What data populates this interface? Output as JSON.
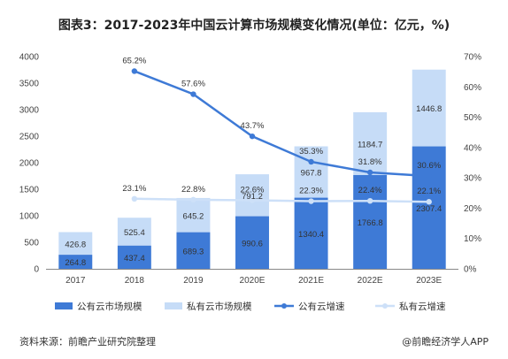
{
  "title": "图表3：2017-2023年中国云计算市场规模变化情况(单位：亿元，%)",
  "footer": {
    "source": "资料来源：前瞻产业研究院整理",
    "brand": "@前瞻经济学人APP"
  },
  "colors": {
    "public_bar": "#3e7ad6",
    "private_bar": "#c6dcf7",
    "public_line": "#3e7ad6",
    "private_line": "#cde0f8"
  },
  "chart_data": {
    "type": "bar",
    "categories": [
      "2017",
      "2018",
      "2019",
      "2020E",
      "2021E",
      "2022E",
      "2023E"
    ],
    "series": [
      {
        "name": "公有云市场规模",
        "type": "bar",
        "axis": "left",
        "values": [
          264.8,
          437.4,
          689.3,
          990.6,
          1340.4,
          1766.8,
          2307.4
        ]
      },
      {
        "name": "私有云市场规模",
        "type": "bar",
        "axis": "left",
        "values": [
          426.8,
          525.4,
          645.2,
          791.2,
          967.8,
          1184.7,
          1446.8
        ]
      },
      {
        "name": "公有云增速",
        "type": "line",
        "axis": "right",
        "values": [
          null,
          65.2,
          57.6,
          43.7,
          35.3,
          31.8,
          30.6
        ]
      },
      {
        "name": "私有云增速",
        "type": "line",
        "axis": "right",
        "values": [
          null,
          23.1,
          22.8,
          22.6,
          22.3,
          22.4,
          22.1
        ]
      }
    ],
    "y_left": {
      "range": [
        0,
        4000
      ],
      "ticks": [
        "0",
        "500",
        "1000",
        "1500",
        "2000",
        "2500",
        "3000",
        "3500",
        "4000"
      ]
    },
    "y_right": {
      "range": [
        0,
        70
      ],
      "ticks": [
        "0%",
        "10%",
        "20%",
        "30%",
        "40%",
        "50%",
        "60%",
        "70%"
      ]
    },
    "grid": false,
    "legend_position": "bottom"
  }
}
